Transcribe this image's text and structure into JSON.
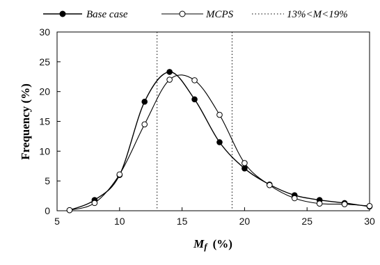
{
  "chart_data": {
    "type": "line",
    "xlim": [
      5,
      30
    ],
    "ylim": [
      0,
      30
    ],
    "xticks": [
      5,
      10,
      15,
      20,
      25,
      30
    ],
    "yticks": [
      0,
      5,
      10,
      15,
      20,
      25,
      30
    ],
    "x_tick_labels": [
      "5",
      "10",
      "15",
      "20",
      "25",
      "30"
    ],
    "y_tick_labels": [
      "0",
      "5",
      "10",
      "15",
      "20",
      "25",
      "30"
    ],
    "xlabel_symbol": "M",
    "xlabel_subscript": "f",
    "xlabel_unit": "(%)",
    "ylabel": "Frequency  (%)",
    "grid": false,
    "legend_position": "top",
    "series": [
      {
        "name": "Base case",
        "marker": "filled-circle",
        "color": "#000000",
        "x": [
          6,
          8,
          10,
          12,
          14,
          16,
          18,
          20,
          22,
          24,
          26,
          28,
          30
        ],
        "y": [
          0.1,
          1.8,
          6.0,
          18.3,
          23.3,
          18.7,
          11.5,
          7.1,
          4.4,
          2.6,
          1.8,
          1.3,
          0.7
        ]
      },
      {
        "name": "MCPS",
        "marker": "open-circle",
        "color": "#000000",
        "x": [
          6,
          8,
          10,
          12,
          14,
          16,
          18,
          20,
          22,
          24,
          26,
          28,
          30
        ],
        "y": [
          0.1,
          1.3,
          6.1,
          14.5,
          22.0,
          21.9,
          16.1,
          8.0,
          4.3,
          2.1,
          1.2,
          1.1,
          0.8
        ]
      }
    ],
    "reference_lines": {
      "name": "13%<M<19%",
      "style": "dotted",
      "x": [
        13,
        19
      ]
    }
  }
}
